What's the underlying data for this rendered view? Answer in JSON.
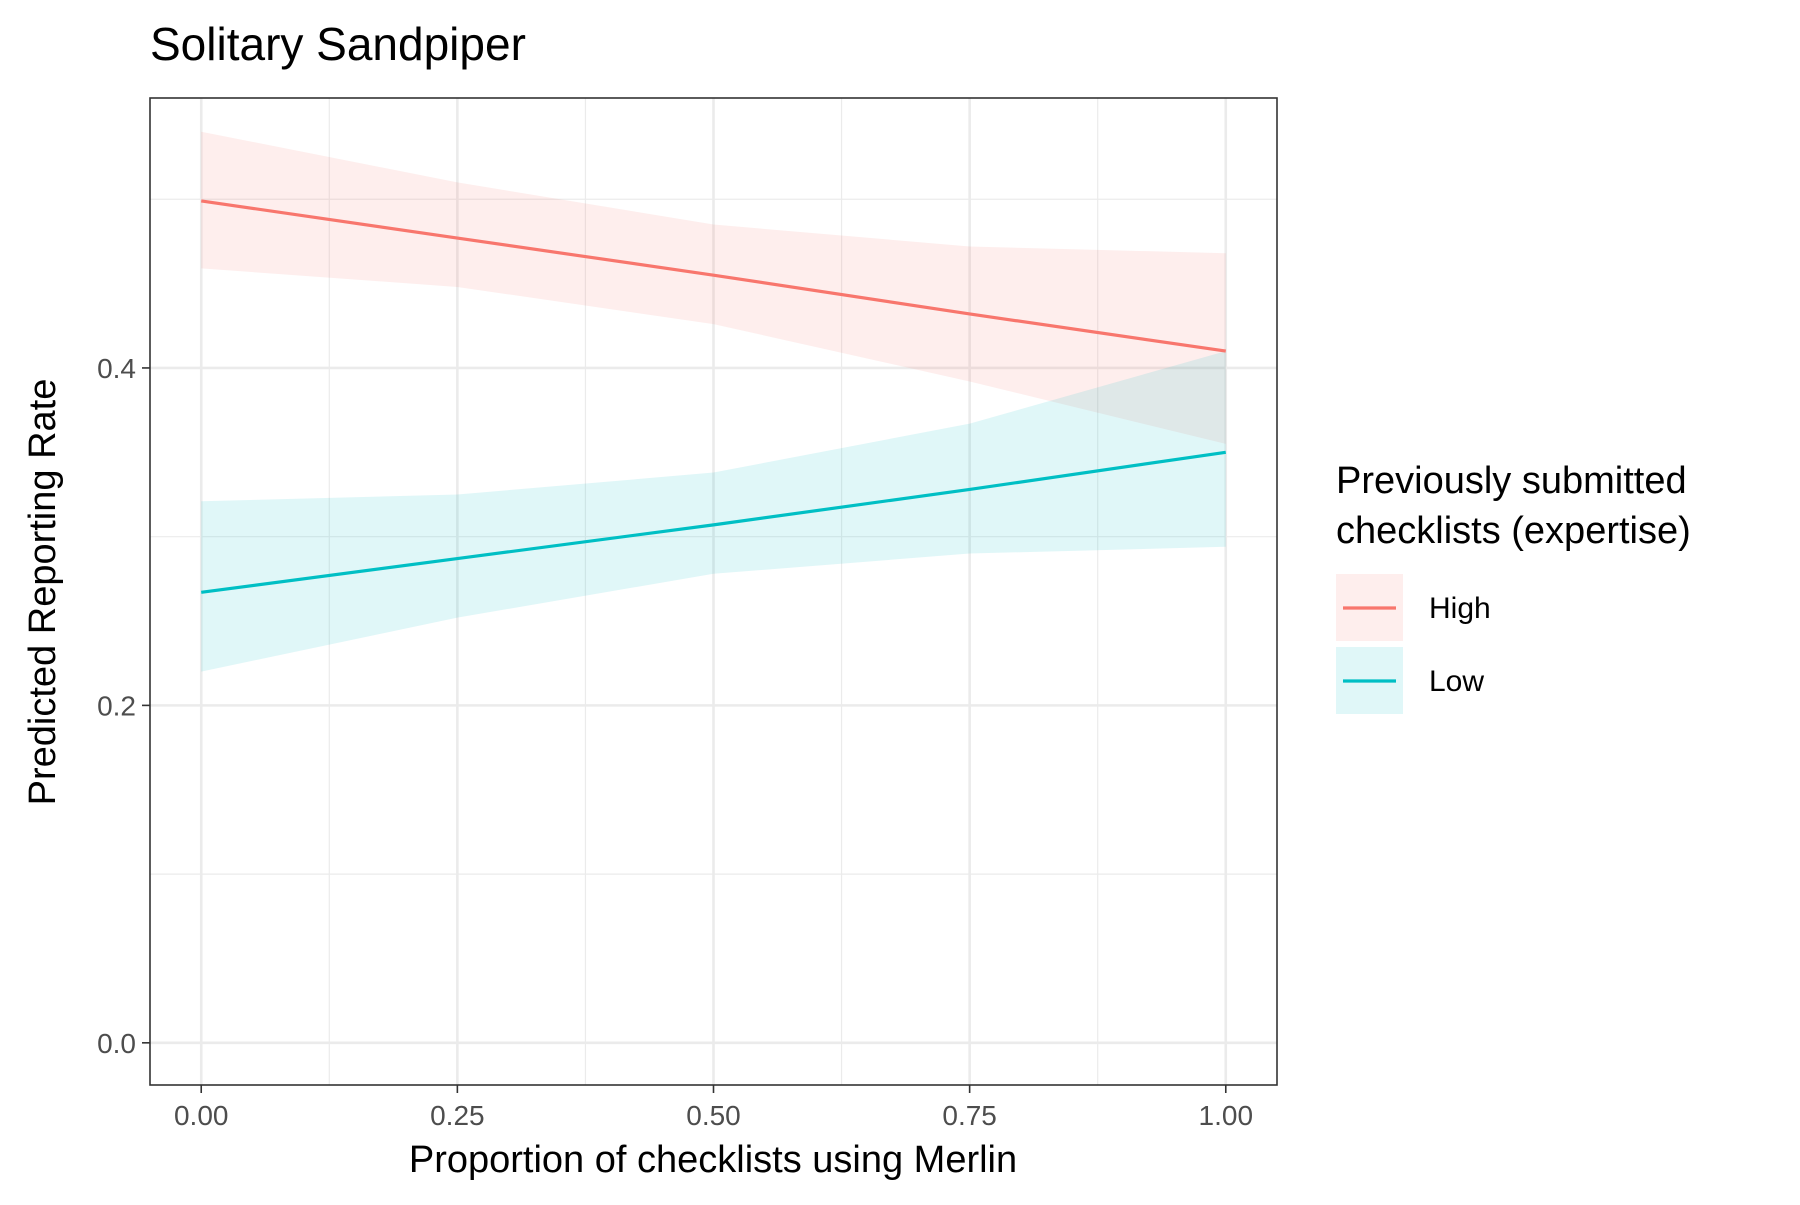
{
  "chart_data": {
    "type": "line",
    "title": "Solitary Sandpiper",
    "xlabel": "Proportion of checklists using Merlin",
    "ylabel": "Predicted Reporting Rate",
    "xlim": [
      -0.05,
      1.05
    ],
    "ylim": [
      -0.025,
      0.56
    ],
    "x_ticks": [
      0.0,
      0.25,
      0.5,
      0.75,
      1.0
    ],
    "x_tick_labels": [
      "0.00",
      "0.25",
      "0.50",
      "0.75",
      "1.00"
    ],
    "y_ticks": [
      0.0,
      0.2,
      0.4
    ],
    "y_tick_labels": [
      "0.0",
      "0.2",
      "0.4"
    ],
    "x_minor_ticks": [
      0.125,
      0.375,
      0.625,
      0.875
    ],
    "y_minor_ticks": [
      0.1,
      0.3,
      0.5
    ],
    "grid": true,
    "legend": {
      "title": "Previously submitted checklists (expertise)",
      "title_lines": [
        "Previously submitted",
        "checklists (expertise)"
      ],
      "position": "right"
    },
    "x": [
      0.0,
      0.25,
      0.5,
      0.75,
      1.0
    ],
    "series": [
      {
        "name": "High",
        "color": "#F8766D",
        "values": [
          0.499,
          0.477,
          0.455,
          0.432,
          0.41
        ],
        "ci_upper": [
          0.54,
          0.51,
          0.485,
          0.472,
          0.468
        ],
        "ci_lower": [
          0.459,
          0.448,
          0.426,
          0.392,
          0.355
        ]
      },
      {
        "name": "Low",
        "color": "#00BFC4",
        "values": [
          0.267,
          0.287,
          0.307,
          0.328,
          0.35
        ],
        "ci_upper": [
          0.321,
          0.325,
          0.338,
          0.367,
          0.41
        ],
        "ci_lower": [
          0.22,
          0.252,
          0.278,
          0.29,
          0.294
        ]
      }
    ]
  }
}
